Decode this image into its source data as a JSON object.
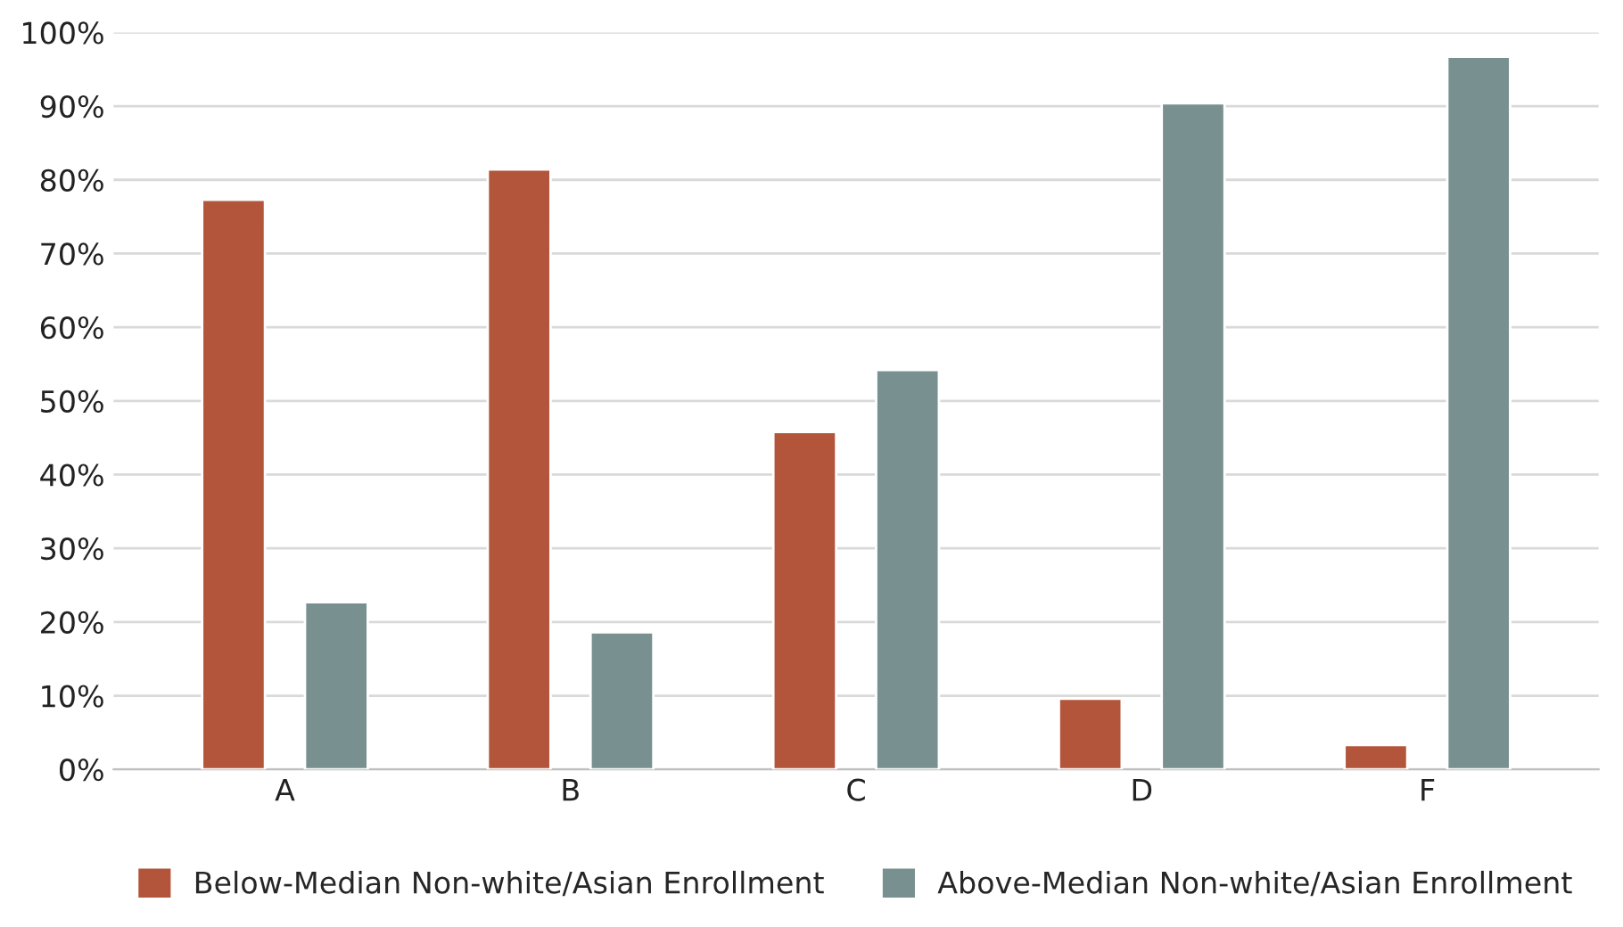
{
  "chart_data": {
    "type": "bar",
    "categories": [
      "A",
      "B",
      "C",
      "D",
      "F"
    ],
    "series": [
      {
        "name": "Below-Median Non-white/Asian Enrollment",
        "color": "#b3553a",
        "values": [
          77.3,
          81.4,
          45.8,
          9.6,
          3.3
        ]
      },
      {
        "name": "Above-Median Non-white/Asian Enrollment",
        "color": "#789190",
        "values": [
          22.7,
          18.6,
          54.2,
          90.4,
          96.7
        ]
      }
    ],
    "ylim": [
      0,
      100
    ],
    "yticks": [
      {
        "value": 0,
        "label": "0%"
      },
      {
        "value": 10,
        "label": "10%"
      },
      {
        "value": 20,
        "label": "20%"
      },
      {
        "value": 30,
        "label": "30%"
      },
      {
        "value": 40,
        "label": "40%"
      },
      {
        "value": 50,
        "label": "50%"
      },
      {
        "value": 60,
        "label": "60%"
      },
      {
        "value": 70,
        "label": "70%"
      },
      {
        "value": 80,
        "label": "80%"
      },
      {
        "value": 90,
        "label": "90%"
      },
      {
        "value": 100,
        "label": "100%"
      }
    ],
    "grid": "y",
    "legend": "bottom"
  }
}
